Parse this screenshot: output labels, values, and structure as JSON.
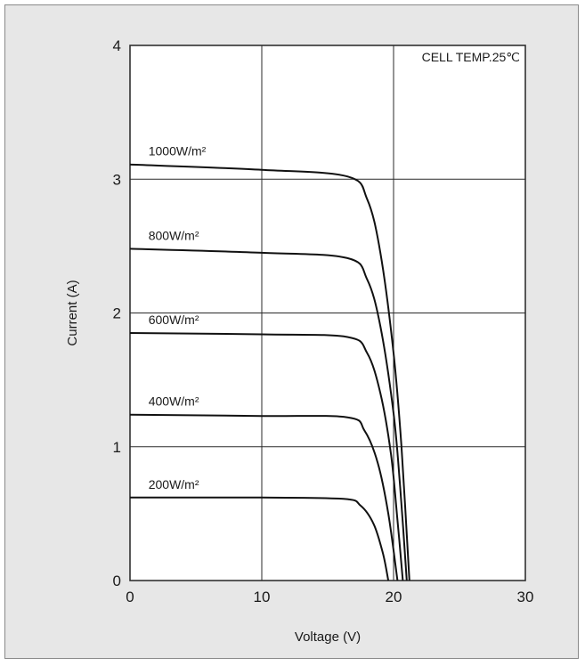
{
  "chart_data": {
    "type": "line",
    "xlabel": "Voltage (V)",
    "ylabel": "Current (A)",
    "xlim": [
      0,
      30
    ],
    "ylim": [
      0,
      4
    ],
    "xticks": [
      "0",
      "10",
      "20",
      "30"
    ],
    "yticks": [
      "0",
      "1",
      "2",
      "3",
      "4"
    ],
    "grid": true,
    "annotation": "CELL TEMP.25℃",
    "series": [
      {
        "name": "1000W/m²",
        "isc": 3.11,
        "ik": 3.02,
        "vk": 16.5,
        "voc": 21.2,
        "points": [
          [
            0,
            3.11
          ],
          [
            10,
            3.07
          ],
          [
            16.5,
            3.02
          ],
          [
            18,
            2.85
          ],
          [
            19,
            2.45
          ],
          [
            20,
            1.7
          ],
          [
            20.6,
            1.0
          ],
          [
            21.2,
            0
          ]
        ]
      },
      {
        "name": "800W/m²",
        "isc": 2.48,
        "ik": 2.41,
        "vk": 16.5,
        "voc": 21.0,
        "points": [
          [
            0,
            2.48
          ],
          [
            10,
            2.45
          ],
          [
            16.5,
            2.41
          ],
          [
            18,
            2.25
          ],
          [
            19,
            1.9
          ],
          [
            20,
            1.25
          ],
          [
            20.5,
            0.7
          ],
          [
            21.0,
            0
          ]
        ]
      },
      {
        "name": "600W/m²",
        "isc": 1.85,
        "ik": 1.82,
        "vk": 16.5,
        "voc": 20.7,
        "points": [
          [
            0,
            1.85
          ],
          [
            10,
            1.84
          ],
          [
            16.5,
            1.82
          ],
          [
            18,
            1.7
          ],
          [
            19,
            1.4
          ],
          [
            19.8,
            0.95
          ],
          [
            20.3,
            0.45
          ],
          [
            20.7,
            0
          ]
        ]
      },
      {
        "name": "400W/m²",
        "isc": 1.24,
        "ik": 1.22,
        "vk": 16.5,
        "voc": 20.3,
        "points": [
          [
            0,
            1.24
          ],
          [
            10,
            1.23
          ],
          [
            16.5,
            1.22
          ],
          [
            17.8,
            1.12
          ],
          [
            18.8,
            0.88
          ],
          [
            19.6,
            0.5
          ],
          [
            20.3,
            0
          ]
        ]
      },
      {
        "name": "200W/m²",
        "isc": 0.62,
        "ik": 0.61,
        "vk": 16.2,
        "voc": 19.6,
        "points": [
          [
            0,
            0.62
          ],
          [
            10,
            0.62
          ],
          [
            16.2,
            0.61
          ],
          [
            17.5,
            0.56
          ],
          [
            18.5,
            0.42
          ],
          [
            19.2,
            0.2
          ],
          [
            19.6,
            0
          ]
        ]
      }
    ]
  }
}
